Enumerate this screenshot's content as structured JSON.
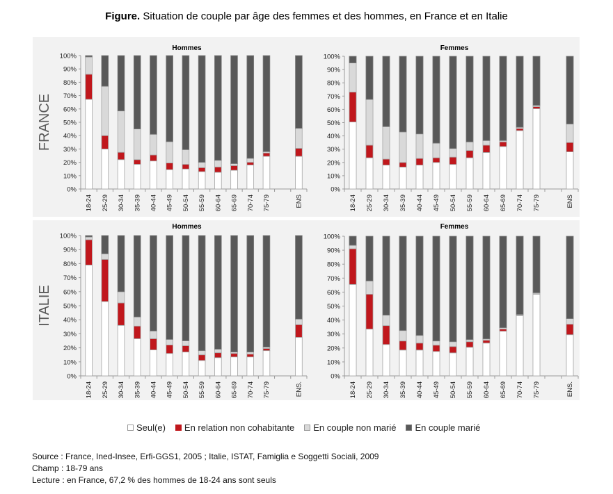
{
  "title": {
    "bold": "Figure.",
    "rest": " Situation de couple par âge des femmes et des hommes, en France et en Italie"
  },
  "colors": {
    "seul": "#ffffff",
    "relation": "#c0171c",
    "non_marie": "#d9d9d9",
    "marie": "#595959",
    "panel_bg": "#f2f2f2"
  },
  "legend": [
    {
      "key": "seul",
      "label": "Seul(e)"
    },
    {
      "key": "relation",
      "label": "En relation non cohabitante"
    },
    {
      "key": "non_marie",
      "label": "En couple non marié"
    },
    {
      "key": "marie",
      "label": "En couple marié"
    }
  ],
  "footer": {
    "source": "Source : France, Ined-Insee, Erfi-GGS1, 2005 ; Italie, ISTAT, Famiglia e Soggetti Sociali, 2009",
    "champ": "Champ : 18-79 ans",
    "lecture": "Lecture : en France, 67,2 % des hommes de 18-24 ans sont seuls"
  },
  "chart_data": [
    {
      "type": "bar",
      "stacked": true,
      "country": "FRANCE",
      "title": "Hommes",
      "xlabel": "",
      "ylabel": "",
      "ylim": [
        0,
        100
      ],
      "yticks": [
        "0%",
        "10%",
        "20%",
        "30%",
        "40%",
        "50%",
        "60%",
        "70%",
        "80%",
        "90%",
        "100%"
      ],
      "categories": [
        "18-24",
        "25-29",
        "30-34",
        "35-39",
        "40-44",
        "45-49",
        "50-54",
        "55-59",
        "60-64",
        "65-69",
        "70-74",
        "75-79",
        "",
        "ENS"
      ],
      "series": [
        {
          "name": "Seul(e)",
          "key": "seul",
          "values": [
            67.2,
            30,
            22,
            18.5,
            21,
            14.5,
            15,
            13,
            12.5,
            14,
            18,
            24.5,
            null,
            24.5
          ]
        },
        {
          "name": "En relation non cohabitante",
          "key": "relation",
          "values": [
            18.8,
            10,
            5.5,
            3.5,
            4.5,
            5,
            3.5,
            3,
            4,
            3.5,
            2,
            2.5,
            null,
            6
          ]
        },
        {
          "name": "En couple non marié",
          "key": "non_marie",
          "values": [
            13,
            37,
            31,
            23,
            15.5,
            16,
            11,
            4,
            5,
            1.5,
            3,
            1,
            null,
            15
          ]
        },
        {
          "name": "En couple marié",
          "key": "marie",
          "values": [
            1,
            23,
            41.5,
            55,
            59,
            64.5,
            70.5,
            80,
            78.5,
            81,
            77,
            72,
            null,
            54.5
          ]
        }
      ]
    },
    {
      "type": "bar",
      "stacked": true,
      "country": "FRANCE",
      "title": "Femmes",
      "xlabel": "",
      "ylabel": "",
      "ylim": [
        0,
        100
      ],
      "yticks": [
        "0%",
        "10%",
        "20%",
        "30%",
        "40%",
        "50%",
        "60%",
        "70%",
        "80%",
        "90%",
        "100%"
      ],
      "categories": [
        "18-24",
        "25-29",
        "30-34",
        "35-39",
        "40-44",
        "45-49",
        "50-54",
        "55-59",
        "60-64",
        "65-69",
        "70-74",
        "75-79",
        "",
        "ENS"
      ],
      "series": [
        {
          "name": "Seul(e)",
          "key": "seul",
          "values": [
            50.5,
            23.5,
            18,
            16.5,
            18,
            20,
            18.5,
            23.5,
            27.5,
            32,
            44,
            60.5,
            null,
            28
          ]
        },
        {
          "name": "En relation non cohabitante",
          "key": "relation",
          "values": [
            22.5,
            9.5,
            4.5,
            3.5,
            5,
            3.5,
            5.5,
            5.5,
            5.5,
            3.5,
            1.5,
            1.5,
            null,
            7
          ]
        },
        {
          "name": "En couple non marié",
          "key": "non_marie",
          "values": [
            22,
            34.5,
            24.5,
            23,
            18.5,
            11,
            6.5,
            6.5,
            3.5,
            1,
            1,
            1,
            null,
            14
          ]
        },
        {
          "name": "En couple marié",
          "key": "marie",
          "values": [
            5,
            32.5,
            53,
            57,
            58.5,
            65.5,
            69.5,
            64.5,
            63.5,
            63.5,
            53.5,
            37,
            null,
            51
          ]
        }
      ]
    },
    {
      "type": "bar",
      "stacked": true,
      "country": "ITALIE",
      "title": "Hommes",
      "xlabel": "",
      "ylabel": "",
      "ylim": [
        0,
        100
      ],
      "yticks": [
        "0%",
        "10%",
        "20%",
        "30%",
        "40%",
        "50%",
        "60%",
        "70%",
        "80%",
        "90%",
        "100%"
      ],
      "categories": [
        "18-24",
        "25-29",
        "30-34",
        "35-39",
        "40-44",
        "45-49",
        "50-54",
        "55-59",
        "60-64",
        "65-69",
        "70-74",
        "75-79",
        "",
        "ENS."
      ],
      "series": [
        {
          "name": "Seul(e)",
          "key": "seul",
          "values": [
            79,
            53,
            36,
            26.5,
            18.5,
            16,
            17,
            11,
            13,
            13.5,
            13.5,
            18,
            null,
            27.5
          ]
        },
        {
          "name": "En relation non cohabitante",
          "key": "relation",
          "values": [
            18,
            30,
            16,
            9,
            8,
            6,
            4.5,
            4,
            3.5,
            2.5,
            2,
            1.5,
            null,
            9
          ]
        },
        {
          "name": "En couple non marié",
          "key": "non_marie",
          "values": [
            2,
            4,
            8,
            6.5,
            5.5,
            4,
            3.5,
            3,
            2.5,
            1,
            1.5,
            1,
            null,
            4
          ]
        },
        {
          "name": "En couple marié",
          "key": "marie",
          "values": [
            1,
            13,
            40,
            58,
            68,
            74,
            75,
            82,
            81,
            83,
            83,
            79.5,
            null,
            59.5
          ]
        }
      ]
    },
    {
      "type": "bar",
      "stacked": true,
      "country": "ITALIE",
      "title": "Femmes",
      "xlabel": "",
      "ylabel": "",
      "ylim": [
        0,
        100
      ],
      "yticks": [
        "0%",
        "10%",
        "20%",
        "30%",
        "40%",
        "50%",
        "60%",
        "70%",
        "80%",
        "90%",
        "100%"
      ],
      "categories": [
        "18-24",
        "25-29",
        "30-34",
        "35-39",
        "40-44",
        "45-49",
        "50-54",
        "55-59",
        "60-64",
        "65-69",
        "70-74",
        "75-79",
        "",
        "ENS."
      ],
      "series": [
        {
          "name": "Seul(e)",
          "key": "seul",
          "values": [
            65.5,
            33.5,
            22.5,
            18.5,
            18.5,
            17.5,
            16.5,
            20.5,
            23.5,
            32,
            43,
            58.5,
            null,
            29.5
          ]
        },
        {
          "name": "En relation non cohabitante",
          "key": "relation",
          "values": [
            25.5,
            25,
            13.5,
            6.5,
            5,
            4.5,
            4.5,
            4,
            2,
            1.5,
            0.3,
            0.3,
            null,
            7.5
          ]
        },
        {
          "name": "En couple non marié",
          "key": "non_marie",
          "values": [
            2.5,
            9.5,
            7.5,
            7.5,
            5.5,
            3,
            3.5,
            1.5,
            1,
            1,
            0.7,
            0.7,
            null,
            4
          ]
        },
        {
          "name": "En couple marié",
          "key": "marie",
          "values": [
            6.5,
            32,
            56.5,
            67.5,
            71,
            75,
            75.5,
            74,
            73.5,
            65.5,
            56,
            40.5,
            null,
            59
          ]
        }
      ]
    }
  ]
}
